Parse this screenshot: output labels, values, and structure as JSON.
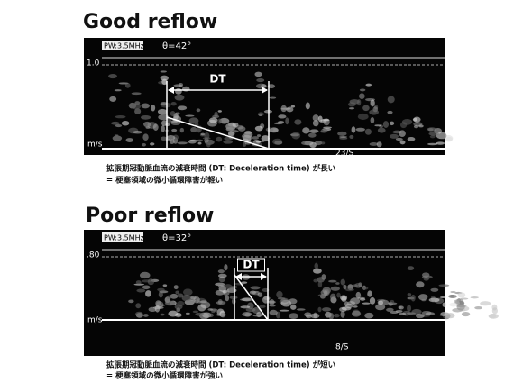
{
  "sections": [
    {
      "title": "Good reflow",
      "image": {
        "mode": "PW:3.5MHz",
        "angle": "θ=42°",
        "scale": "1.0",
        "marker": "DT",
        "unit": "m/s",
        "rate": "23/S"
      },
      "caption": [
        "拡張期冠動脈血流の減衰時間 (DT: Deceleration time) が長い",
        "= 梗塞領域の微小循環障害が軽い"
      ]
    },
    {
      "title": "Poor reflow",
      "image": {
        "mode": "PW:3.5MHz",
        "angle": "θ=32°",
        "scale": ".80",
        "marker": "DT",
        "unit": "m/s",
        "rate": "8/S"
      },
      "caption": [
        "拡張期冠動脈血流の減衰時間 (DT: Deceleration time) が短い",
        "= 梗塞領域の微小循環障害が強い"
      ]
    }
  ]
}
